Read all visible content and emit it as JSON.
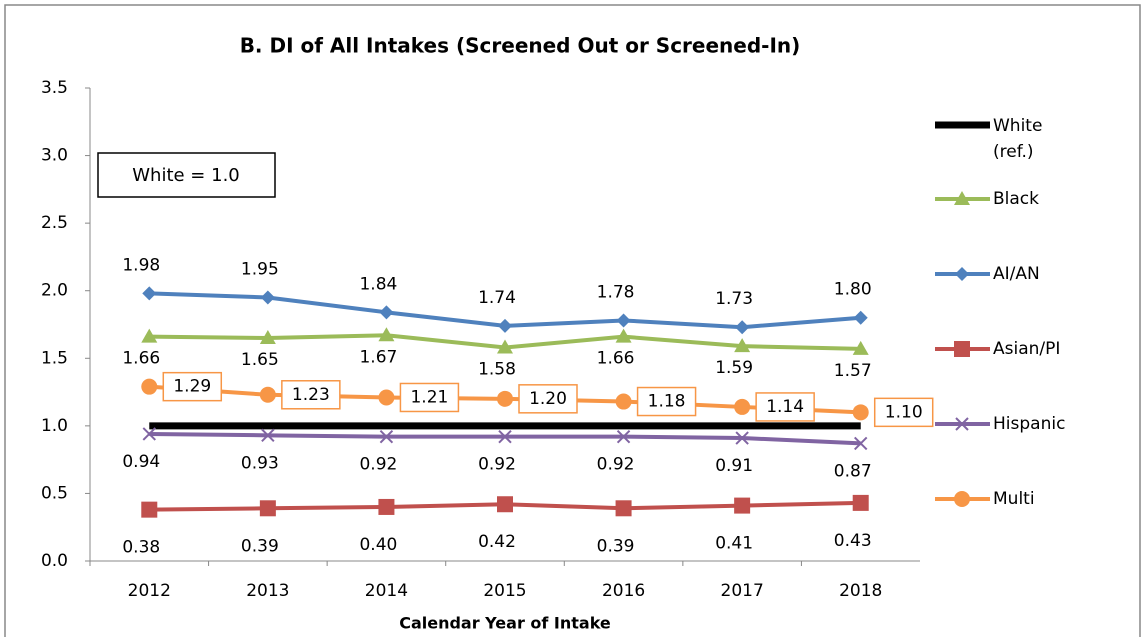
{
  "chart_data": {
    "type": "line",
    "title": "B. DI of All Intakes (Screened Out or Screened-In)",
    "x_label": "Calendar Year of Intake",
    "annotation": "White = 1.0",
    "categories": [
      "2012",
      "2013",
      "2014",
      "2015",
      "2016",
      "2017",
      "2018"
    ],
    "ylim": [
      0,
      3.5
    ],
    "yticks": [
      {
        "value": 0,
        "label": "0.0"
      },
      0.5,
      {
        "value": 1,
        "label": "1.0"
      },
      1.5,
      {
        "value": 2,
        "label": "2.0"
      },
      2.5,
      {
        "value": 3,
        "label": "3.0"
      },
      3.5
    ],
    "legend": "right",
    "series": [
      {
        "name": "White (ref.)",
        "color": "#000000",
        "marker": "none",
        "values": [
          1,
          1,
          1,
          1,
          1,
          1,
          1
        ]
      },
      {
        "name": "Black",
        "color": "#9bbb59",
        "marker": "triangle",
        "values": [
          1.66,
          1.65,
          1.67,
          1.58,
          1.66,
          1.59,
          1.57
        ],
        "value_labels": [
          "1.66",
          "1.65",
          "1.67",
          "1.58",
          "1.66",
          "1.59",
          "1.57"
        ]
      },
      {
        "name": "AI/AN",
        "color": "#4f81bd",
        "marker": "diamond",
        "values": [
          1.98,
          1.95,
          1.84,
          1.74,
          1.78,
          1.73,
          1.8
        ],
        "value_labels": [
          "1.98",
          "1.95",
          "1.84",
          "1.74",
          "1.78",
          "1.73",
          "1.80"
        ]
      },
      {
        "name": "Asian/PI",
        "color": "#c0504d",
        "marker": "square",
        "values": [
          0.38,
          0.39,
          0.4,
          0.42,
          0.39,
          0.41,
          0.43
        ],
        "value_labels": [
          "0.38",
          "0.39",
          "0.40",
          "0.42",
          "0.39",
          "0.41",
          "0.43"
        ]
      },
      {
        "name": "Hispanic",
        "color": "#8064a2",
        "marker": "x",
        "values": [
          0.94,
          0.93,
          0.92,
          0.92,
          0.92,
          0.91,
          0.87
        ],
        "value_labels": [
          "0.94",
          "0.93",
          "0.92",
          "0.92",
          "0.92",
          "0.91",
          "0.87"
        ]
      },
      {
        "name": "Multi",
        "color": "#f79646",
        "marker": "circle",
        "values": [
          1.29,
          1.23,
          1.21,
          1.2,
          1.18,
          1.14,
          1.1
        ],
        "value_labels": [
          "1.29",
          "1.23",
          "1.21",
          "1.20",
          "1.18",
          "1.14",
          "1.10"
        ]
      }
    ]
  }
}
